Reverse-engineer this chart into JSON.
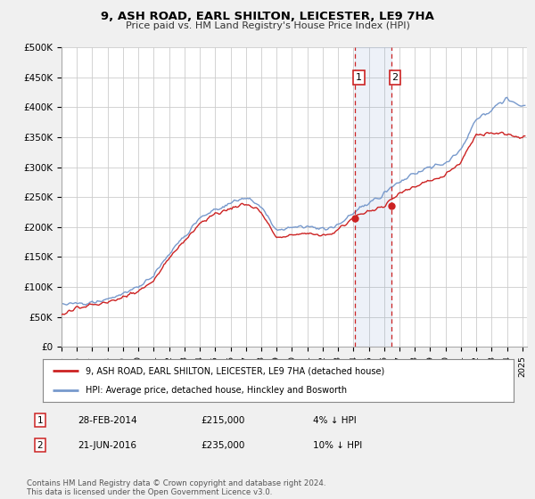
{
  "title": "9, ASH ROAD, EARL SHILTON, LEICESTER, LE9 7HA",
  "subtitle": "Price paid vs. HM Land Registry's House Price Index (HPI)",
  "ylabel_ticks": [
    "£0",
    "£50K",
    "£100K",
    "£150K",
    "£200K",
    "£250K",
    "£300K",
    "£350K",
    "£400K",
    "£450K",
    "£500K"
  ],
  "ytick_values": [
    0,
    50000,
    100000,
    150000,
    200000,
    250000,
    300000,
    350000,
    400000,
    450000,
    500000
  ],
  "ylim": [
    0,
    500000
  ],
  "xlim_start": 1995.0,
  "xlim_end": 2025.3,
  "hpi_color": "#7799cc",
  "price_color": "#cc2222",
  "sale1_x": 2014.12,
  "sale1_y": 215000,
  "sale2_x": 2016.46,
  "sale2_y": 235000,
  "legend_line1": "9, ASH ROAD, EARL SHILTON, LEICESTER, LE9 7HA (detached house)",
  "legend_line2": "HPI: Average price, detached house, Hinckley and Bosworth",
  "footnote": "Contains HM Land Registry data © Crown copyright and database right 2024.\nThis data is licensed under the Open Government Licence v3.0.",
  "table_rows": [
    {
      "num": "1",
      "date": "28-FEB-2014",
      "price": "£215,000",
      "pct": "4% ↓ HPI"
    },
    {
      "num": "2",
      "date": "21-JUN-2016",
      "price": "£235,000",
      "pct": "10% ↓ HPI"
    }
  ],
  "background_color": "#f0f0f0",
  "plot_bg_color": "#ffffff",
  "key_years_hpi": [
    1995,
    1996,
    1997,
    1998,
    1999,
    2000,
    2001,
    2002,
    2003,
    2004,
    2005,
    2006,
    2007,
    2008,
    2009,
    2010,
    2011,
    2012,
    2013,
    2014,
    2015,
    2016,
    2017,
    2018,
    2019,
    2020,
    2021,
    2022,
    2023,
    2024,
    2025
  ],
  "key_vals_hpi": [
    72000,
    73000,
    76000,
    80000,
    88000,
    100000,
    120000,
    155000,
    185000,
    215000,
    230000,
    240000,
    250000,
    235000,
    195000,
    200000,
    200000,
    195000,
    205000,
    225000,
    240000,
    258000,
    275000,
    290000,
    300000,
    305000,
    330000,
    380000,
    395000,
    415000,
    400000
  ],
  "key_years_price": [
    1995,
    1996,
    1997,
    1998,
    1999,
    2000,
    2001,
    2002,
    2003,
    2004,
    2005,
    2006,
    2007,
    2008,
    2009,
    2010,
    2011,
    2012,
    2013,
    2014,
    2015,
    2016,
    2017,
    2018,
    2019,
    2020,
    2021,
    2022,
    2023,
    2024,
    2025
  ],
  "key_vals_price": [
    55000,
    65000,
    70000,
    75000,
    82000,
    93000,
    112000,
    148000,
    178000,
    207000,
    222000,
    232000,
    240000,
    225000,
    183000,
    188000,
    190000,
    185000,
    195000,
    215000,
    228000,
    235000,
    255000,
    268000,
    278000,
    285000,
    310000,
    355000,
    355000,
    355000,
    350000
  ]
}
